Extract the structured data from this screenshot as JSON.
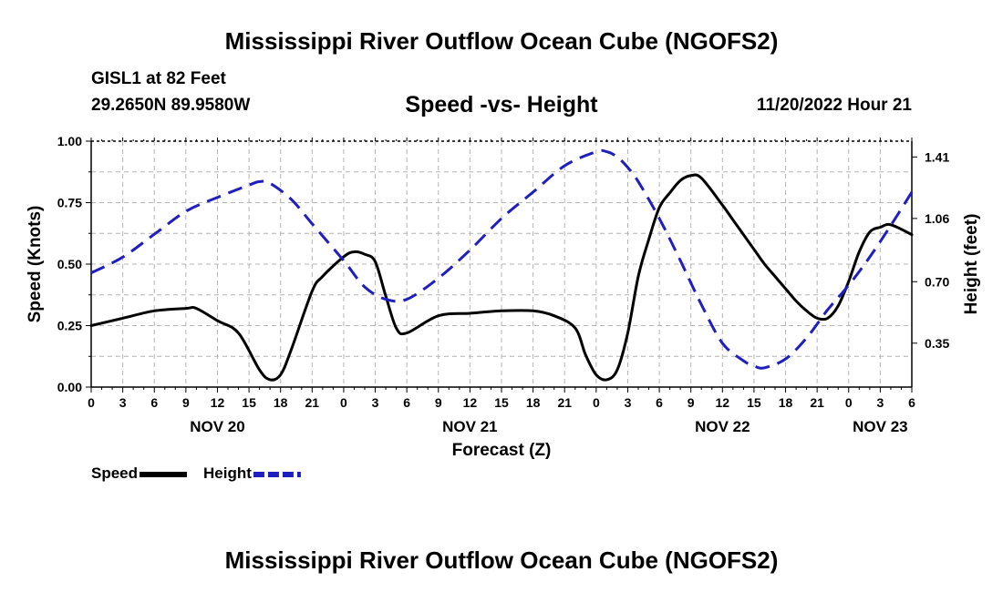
{
  "header": {
    "title": "Mississippi River Outflow Ocean Cube (NGOFS2)",
    "station": "GISL1 at 82 Feet",
    "coordinates": "29.2650N  89.9580W",
    "subtitle": "Speed -vs- Height",
    "datetime": "11/20/2022 Hour 21"
  },
  "footer": {
    "title": "Mississippi River Outflow Ocean Cube (NGOFS2)"
  },
  "chart_data": {
    "type": "line",
    "title": "Speed -vs- Height",
    "xlabel": "Forecast (Z)",
    "ylabel": "Speed (Knots)",
    "y2label": "Height (feet)",
    "xlim": [
      0,
      78
    ],
    "ylim": [
      0,
      1
    ],
    "y2lim": [
      0.1,
      1.5
    ],
    "x_ticks": [
      0,
      3,
      6,
      9,
      12,
      15,
      18,
      21,
      24,
      27,
      30,
      33,
      36,
      39,
      42,
      45,
      48,
      51,
      54,
      57,
      60,
      63,
      66,
      69,
      72,
      75,
      78
    ],
    "x_tick_labels": [
      "0",
      "3",
      "6",
      "9",
      "12",
      "15",
      "18",
      "21",
      "0",
      "3",
      "6",
      "9",
      "12",
      "15",
      "18",
      "21",
      "0",
      "3",
      "6",
      "9",
      "12",
      "15",
      "18",
      "21",
      "0",
      "3",
      "6"
    ],
    "date_labels": [
      {
        "x": 12,
        "label": "NOV 20"
      },
      {
        "x": 36,
        "label": "NOV 21"
      },
      {
        "x": 60,
        "label": "NOV 22"
      },
      {
        "x": 75,
        "label": "NOV 23"
      }
    ],
    "y_ticks": [
      0,
      0.25,
      0.5,
      0.75,
      1
    ],
    "y_tick_labels": [
      "0.00",
      "0.25",
      "0.50",
      "0.75",
      "1.00"
    ],
    "y2_ticks": [
      0.35,
      0.7,
      1.06,
      1.41
    ],
    "y2_tick_labels": [
      "0.35",
      "0.70",
      "1.06",
      "1.41"
    ],
    "grid": true,
    "legend_position": "bottom-left",
    "series": [
      {
        "name": "Speed",
        "axis": "left",
        "color": "#000000",
        "style": "solid",
        "x": [
          0,
          3,
          6,
          9,
          10,
          12,
          14,
          16,
          17,
          18,
          19,
          21,
          22,
          24,
          25,
          26,
          27,
          28,
          29,
          30,
          33,
          36,
          39,
          42,
          44,
          46,
          47,
          48,
          49,
          50,
          51,
          52,
          53,
          54,
          55,
          56,
          57,
          58,
          60,
          61,
          62,
          63,
          64,
          65,
          66,
          67,
          68,
          69,
          70,
          71,
          72,
          73,
          74,
          75,
          76,
          78
        ],
        "values": [
          0.25,
          0.28,
          0.31,
          0.32,
          0.32,
          0.27,
          0.22,
          0.07,
          0.03,
          0.05,
          0.15,
          0.39,
          0.45,
          0.53,
          0.55,
          0.54,
          0.51,
          0.37,
          0.24,
          0.22,
          0.29,
          0.3,
          0.31,
          0.31,
          0.29,
          0.24,
          0.13,
          0.05,
          0.03,
          0.07,
          0.22,
          0.45,
          0.6,
          0.73,
          0.79,
          0.84,
          0.86,
          0.85,
          0.74,
          0.68,
          0.62,
          0.56,
          0.5,
          0.45,
          0.4,
          0.35,
          0.31,
          0.28,
          0.28,
          0.33,
          0.43,
          0.55,
          0.63,
          0.65,
          0.66,
          0.62
        ]
      },
      {
        "name": "Height",
        "axis": "right",
        "color": "#1f1fbf",
        "style": "dashed",
        "x": [
          0,
          3,
          6,
          9,
          12,
          15,
          16,
          17,
          19,
          21,
          24,
          26,
          28,
          30,
          33,
          36,
          39,
          42,
          45,
          48,
          49,
          50,
          51,
          52,
          54,
          56,
          58,
          60,
          62,
          63,
          64,
          66,
          68,
          70,
          72,
          74,
          76,
          78
        ],
        "values": [
          0.75,
          0.84,
          0.97,
          1.1,
          1.18,
          1.25,
          1.27,
          1.26,
          1.17,
          1.03,
          0.82,
          0.67,
          0.6,
          0.6,
          0.72,
          0.88,
          1.06,
          1.21,
          1.36,
          1.44,
          1.44,
          1.41,
          1.35,
          1.27,
          1.06,
          0.82,
          0.57,
          0.35,
          0.25,
          0.22,
          0.21,
          0.26,
          0.38,
          0.54,
          0.68,
          0.84,
          1.02,
          1.21
        ]
      }
    ]
  }
}
